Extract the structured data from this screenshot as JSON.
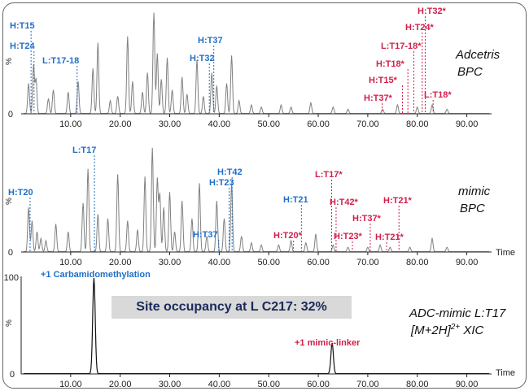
{
  "x_ticks": [
    "10.00",
    "20.00",
    "30.00",
    "40.00",
    "50.00",
    "60.00",
    "70.00",
    "80.00",
    "90.00"
  ],
  "x_time_label": "Time",
  "site_occupancy": "Site occupancy at L C217: 32%",
  "chart_data": [
    {
      "type": "line",
      "labels": [
        "Adcetris",
        "BPC"
      ],
      "ylabel": "%",
      "y_tick_label": "0",
      "xlim": [
        0,
        95
      ],
      "ylim": [
        0,
        100
      ],
      "series": [
        {
          "color": "#808080",
          "peaks": [
            [
              1.5,
              28
            ],
            [
              2.5,
              45
            ],
            [
              3.0,
              32
            ],
            [
              5.5,
              14
            ],
            [
              6.5,
              22
            ],
            [
              9.5,
              20
            ],
            [
              11.5,
              30
            ],
            [
              14.5,
              42
            ],
            [
              15.5,
              66
            ],
            [
              18.0,
              12
            ],
            [
              19.5,
              16
            ],
            [
              21.5,
              72
            ],
            [
              22.5,
              30
            ],
            [
              24.5,
              20
            ],
            [
              25.5,
              38
            ],
            [
              26.8,
              94
            ],
            [
              27.5,
              56
            ],
            [
              28.3,
              32
            ],
            [
              29.5,
              52
            ],
            [
              30.5,
              22
            ],
            [
              32.5,
              34
            ],
            [
              33.5,
              18
            ],
            [
              35.5,
              50
            ],
            [
              36.8,
              16
            ],
            [
              38.5,
              38
            ],
            [
              39.5,
              26
            ],
            [
              41.5,
              28
            ],
            [
              42.5,
              54
            ],
            [
              44.0,
              12
            ],
            [
              46.5,
              8
            ],
            [
              48.5,
              6
            ],
            [
              52.5,
              8
            ],
            [
              54.5,
              6
            ],
            [
              58.5,
              10
            ],
            [
              63.0,
              6
            ],
            [
              66.0,
              4
            ],
            [
              73.0,
              4
            ],
            [
              76.0,
              8
            ],
            [
              80.0,
              6
            ],
            [
              83.0,
              8
            ],
            [
              86.0,
              4
            ]
          ]
        }
      ],
      "annotations": [
        {
          "text": "H:T15",
          "x": 2.0,
          "color": "blue"
        },
        {
          "text": "H:T24",
          "x": 2.6,
          "color": "blue"
        },
        {
          "text": "L:T17-18",
          "x": 11.3,
          "color": "blue"
        },
        {
          "text": "H:T37",
          "x": 38.9,
          "color": "blue"
        },
        {
          "text": "H:T32",
          "x": 38.0,
          "color": "blue"
        },
        {
          "text": "H:T32*",
          "x": 81.6,
          "color": "red"
        },
        {
          "text": "H:T24*",
          "x": 81.0,
          "color": "red"
        },
        {
          "text": "L:T17-18*",
          "x": 79.3,
          "color": "red"
        },
        {
          "text": "H:T18*",
          "x": 78.1,
          "color": "red"
        },
        {
          "text": "H:T15*",
          "x": 77.0,
          "color": "red"
        },
        {
          "text": "H:T37*",
          "x": 72.9,
          "color": "red"
        },
        {
          "text": "L:T18*",
          "x": 83.2,
          "color": "red"
        }
      ]
    },
    {
      "type": "line",
      "labels": [
        "mimic",
        "BPC"
      ],
      "ylabel": "%",
      "y_tick_label": "0",
      "xlim": [
        0,
        95
      ],
      "ylim": [
        0,
        100
      ],
      "series": [
        {
          "color": "#808080",
          "peaks": [
            [
              1.5,
              40
            ],
            [
              2.2,
              28
            ],
            [
              3.2,
              18
            ],
            [
              4.0,
              12
            ],
            [
              5.0,
              10
            ],
            [
              7.0,
              25
            ],
            [
              9.5,
              18
            ],
            [
              12.5,
              44
            ],
            [
              13.5,
              75
            ],
            [
              15.5,
              34
            ],
            [
              17.5,
              30
            ],
            [
              19.5,
              70
            ],
            [
              21.5,
              28
            ],
            [
              23.5,
              20
            ],
            [
              25.0,
              68
            ],
            [
              26.5,
              94
            ],
            [
              27.5,
              66
            ],
            [
              28.0,
              52
            ],
            [
              28.8,
              40
            ],
            [
              30.0,
              54
            ],
            [
              31.0,
              18
            ],
            [
              32.5,
              46
            ],
            [
              34.5,
              30
            ],
            [
              36.0,
              62
            ],
            [
              37.5,
              14
            ],
            [
              39.5,
              46
            ],
            [
              41.0,
              30
            ],
            [
              42.5,
              62
            ],
            [
              44.5,
              14
            ],
            [
              46.5,
              8
            ],
            [
              48.5,
              6
            ],
            [
              52.0,
              6
            ],
            [
              54.5,
              10
            ],
            [
              57.5,
              8
            ],
            [
              59.5,
              16
            ],
            [
              63.0,
              6
            ],
            [
              66.0,
              4
            ],
            [
              70.0,
              4
            ],
            [
              72.5,
              6
            ],
            [
              74.5,
              4
            ],
            [
              78.5,
              4
            ],
            [
              83.0,
              12
            ],
            [
              86.0,
              4
            ]
          ]
        }
      ],
      "annotations": [
        {
          "text": "H:T20",
          "x": 1.8,
          "color": "blue"
        },
        {
          "text": "L:T17",
          "x": 14.8,
          "color": "blue"
        },
        {
          "text": "H:T42",
          "x": 42.6,
          "color": "blue"
        },
        {
          "text": "H:T23",
          "x": 42.0,
          "color": "blue"
        },
        {
          "text": "H:T21",
          "x": 56.6,
          "color": "blue"
        },
        {
          "text": "H:T37",
          "x": 39.9,
          "color": "blue"
        },
        {
          "text": "L:T17*",
          "x": 62.7,
          "color": "red"
        },
        {
          "text": "H:T42*",
          "x": 63.6,
          "color": "red"
        },
        {
          "text": "H:T21*",
          "x": 76.3,
          "color": "red"
        },
        {
          "text": "H:T37*",
          "x": 70.5,
          "color": "red"
        },
        {
          "text": "H:T20*",
          "x": 55.0,
          "color": "red"
        },
        {
          "text": "H:T23*",
          "x": 66.9,
          "color": "red"
        },
        {
          "text": "H:T21*",
          "x": 73.8,
          "color": "red"
        }
      ]
    },
    {
      "type": "line",
      "labels": [
        "ADC-mimic L:T17",
        "[M+2H]",
        "2+",
        " XIC"
      ],
      "ylabel": "%",
      "y_tick_labels": [
        "100",
        "0"
      ],
      "xlim": [
        0,
        95
      ],
      "ylim": [
        0,
        100
      ],
      "series": [
        {
          "color": "#111111",
          "peaks": [
            [
              14.7,
              100
            ],
            [
              62.8,
              32
            ]
          ]
        }
      ],
      "annotations": [
        {
          "text": "+1 Carbamidomethylation",
          "x": 14.7,
          "color": "blue"
        },
        {
          "text": "+1 mimic-linker",
          "x": 62.8,
          "color": "red"
        }
      ]
    }
  ]
}
